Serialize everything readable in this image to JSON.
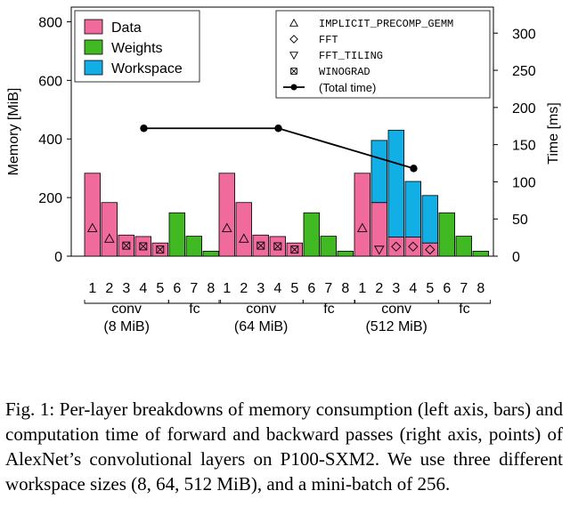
{
  "chart_data": {
    "type": "bar",
    "ylabel_left": "Memory [MiB]",
    "ylabel_right": "Time [ms]",
    "ylim_left": [
      0,
      850
    ],
    "ylim_right": [
      0,
      335
    ],
    "yticks_left": [
      0,
      200,
      400,
      600,
      800
    ],
    "yticks_right": [
      0,
      50,
      100,
      150,
      200,
      250,
      300
    ],
    "colors": {
      "data": "#f06b9c",
      "weights": "#40b923",
      "workspace": "#12aee6",
      "line": "#000000"
    },
    "legend_left": [
      {
        "key": "data",
        "label": "Data"
      },
      {
        "key": "weights",
        "label": "Weights"
      },
      {
        "key": "workspace",
        "label": "Workspace"
      }
    ],
    "legend_right": [
      {
        "marker": "triangle-up",
        "label": "IMPLICIT_PRECOMP_GEMM"
      },
      {
        "marker": "diamond",
        "label": "FFT"
      },
      {
        "marker": "triangle-down",
        "label": "FFT_TILING"
      },
      {
        "marker": "boxed-x",
        "label": "WINOGRAD"
      },
      {
        "marker": "line-dot",
        "label": "(Total time)"
      }
    ],
    "group_labels": [
      "conv",
      "fc"
    ],
    "layer_labels": [
      "1",
      "2",
      "3",
      "4",
      "5",
      "6",
      "7",
      "8"
    ],
    "groups": [
      {
        "label": "(8 MiB)",
        "data": [
          283,
          183,
          72,
          67,
          45,
          0,
          0,
          0
        ],
        "weights": [
          0,
          0,
          0,
          0,
          0,
          148,
          68,
          17
        ],
        "workspace": [
          0,
          0,
          0,
          0,
          0,
          0,
          0,
          0
        ],
        "algorithms": [
          "IMPLICIT_PRECOMP_GEMM",
          "IMPLICIT_PRECOMP_GEMM",
          "WINOGRAD",
          "WINOGRAD",
          "WINOGRAD"
        ],
        "total_time_ms": 172
      },
      {
        "label": "(64 MiB)",
        "data": [
          283,
          183,
          72,
          67,
          45,
          0,
          0,
          0
        ],
        "weights": [
          0,
          0,
          0,
          0,
          0,
          148,
          68,
          17
        ],
        "workspace": [
          0,
          0,
          0,
          0,
          0,
          0,
          0,
          0
        ],
        "algorithms": [
          "IMPLICIT_PRECOMP_GEMM",
          "IMPLICIT_PRECOMP_GEMM",
          "WINOGRAD",
          "WINOGRAD",
          "WINOGRAD"
        ],
        "total_time_ms": 172
      },
      {
        "label": "(512 MiB)",
        "data": [
          283,
          183,
          65,
          65,
          45,
          0,
          0,
          0
        ],
        "weights": [
          0,
          0,
          0,
          0,
          0,
          148,
          68,
          17
        ],
        "workspace": [
          0,
          212,
          365,
          190,
          162,
          0,
          0,
          0
        ],
        "algorithms": [
          "IMPLICIT_PRECOMP_GEMM",
          "FFT_TILING",
          "FFT",
          "FFT",
          "FFT"
        ],
        "total_time_ms": 118
      }
    ]
  },
  "caption": "Fig. 1: Per-layer breakdowns of memory consumption (left axis, bars) and computation time of forward and backward passes (right axis, points) of AlexNet’s convolutional layers on P100-SXM2. We use three different workspace sizes (8, 64, 512 MiB), and a mini-batch of 256."
}
